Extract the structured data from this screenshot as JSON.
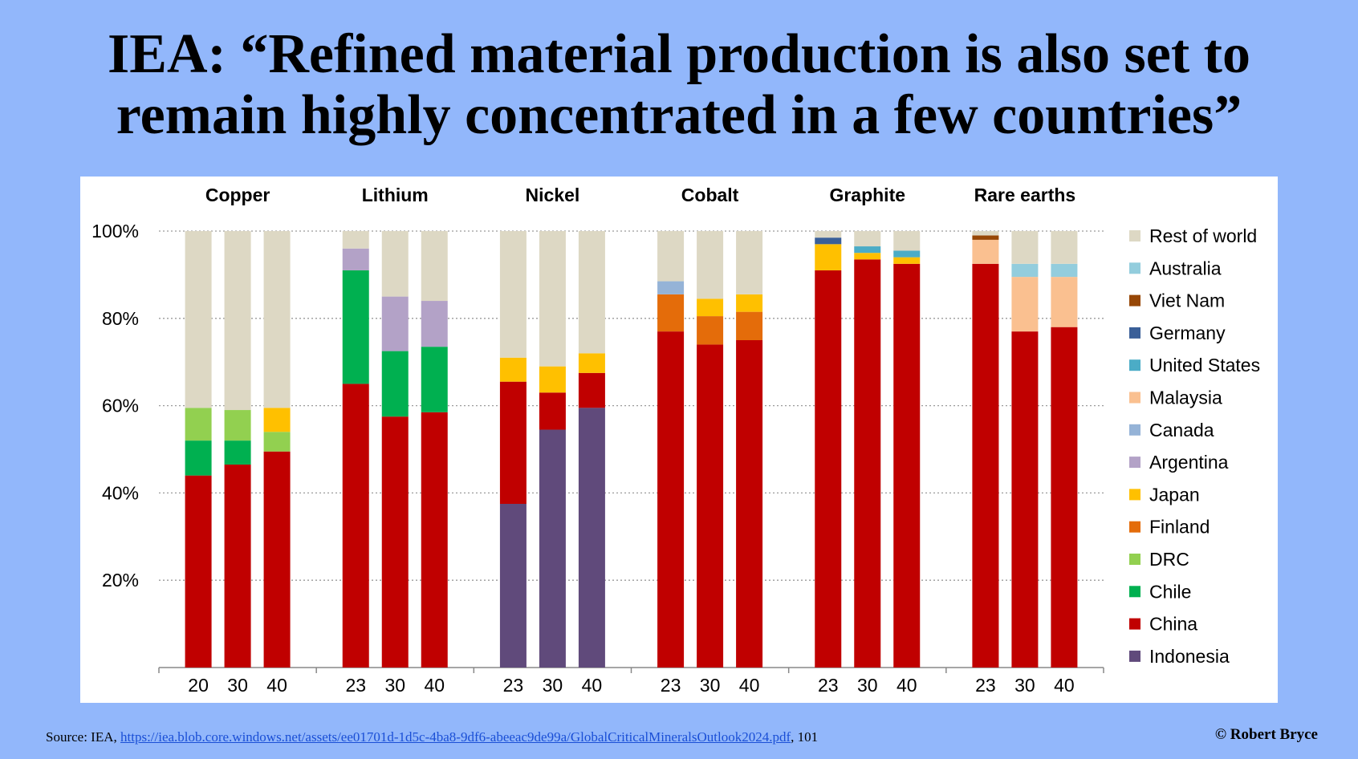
{
  "slide": {
    "title_line1": "IEA: “Refined material production is also set to",
    "title_line2": "remain highly concentrated in a few countries”",
    "source_prefix": "Source: IEA, ",
    "source_link": "https://iea.blob.core.windows.net/assets/ee01701d-1d5c-4ba8-9df6-abeeac9de99a/GlobalCriticalMineralsOutlook2024.pdf",
    "source_suffix": ", 101",
    "copyright": "© Robert Bryce"
  },
  "chart_data": {
    "type": "bar",
    "stacked": true,
    "y_ticks": [
      "20%",
      "40%",
      "60%",
      "80%",
      "100%"
    ],
    "ylim": [
      0,
      100
    ],
    "legend_position": "right",
    "legend": [
      {
        "name": "Rest of world",
        "color": "#ddd8c4"
      },
      {
        "name": "Australia",
        "color": "#93cddd"
      },
      {
        "name": "Viet Nam",
        "color": "#974706"
      },
      {
        "name": "Germany",
        "color": "#3a5f98"
      },
      {
        "name": "United States",
        "color": "#4bacc6"
      },
      {
        "name": "Malaysia",
        "color": "#fac090"
      },
      {
        "name": "Canada",
        "color": "#95b3d7"
      },
      {
        "name": "Argentina",
        "color": "#b3a2c7"
      },
      {
        "name": "Japan",
        "color": "#ffc000"
      },
      {
        "name": "Finland",
        "color": "#e46c0a"
      },
      {
        "name": "DRC",
        "color": "#92d050"
      },
      {
        "name": "Chile",
        "color": "#00b050"
      },
      {
        "name": "China",
        "color": "#c00000"
      },
      {
        "name": "Indonesia",
        "color": "#604a7b"
      }
    ],
    "groups": [
      {
        "title": "Copper",
        "bars": [
          {
            "label": "20",
            "segments": [
              {
                "country": "China",
                "value": 44
              },
              {
                "country": "Chile",
                "value": 8
              },
              {
                "country": "DRC",
                "value": 7.5
              },
              {
                "country": "Rest of world",
                "value": 40.5
              }
            ]
          },
          {
            "label": "30",
            "segments": [
              {
                "country": "China",
                "value": 46.5
              },
              {
                "country": "Chile",
                "value": 5.5
              },
              {
                "country": "DRC",
                "value": 7
              },
              {
                "country": "Rest of world",
                "value": 41
              }
            ]
          },
          {
            "label": "40",
            "segments": [
              {
                "country": "China",
                "value": 49.5
              },
              {
                "country": "DRC",
                "value": 4.5
              },
              {
                "country": "Japan",
                "value": 5.5
              },
              {
                "country": "Rest of world",
                "value": 40.5
              }
            ]
          }
        ]
      },
      {
        "title": "Lithium",
        "bars": [
          {
            "label": "23",
            "segments": [
              {
                "country": "China",
                "value": 65
              },
              {
                "country": "Chile",
                "value": 26
              },
              {
                "country": "Argentina",
                "value": 5
              },
              {
                "country": "Rest of world",
                "value": 4
              }
            ]
          },
          {
            "label": "30",
            "segments": [
              {
                "country": "China",
                "value": 57.5
              },
              {
                "country": "Chile",
                "value": 15
              },
              {
                "country": "Argentina",
                "value": 12.5
              },
              {
                "country": "Rest of world",
                "value": 15
              }
            ]
          },
          {
            "label": "40",
            "segments": [
              {
                "country": "China",
                "value": 58.5
              },
              {
                "country": "Chile",
                "value": 15
              },
              {
                "country": "Argentina",
                "value": 10.5
              },
              {
                "country": "Rest of world",
                "value": 16
              }
            ]
          }
        ]
      },
      {
        "title": "Nickel",
        "bars": [
          {
            "label": "23",
            "segments": [
              {
                "country": "Indonesia",
                "value": 37.5
              },
              {
                "country": "China",
                "value": 28
              },
              {
                "country": "Japan",
                "value": 5.5
              },
              {
                "country": "Rest of world",
                "value": 29
              }
            ]
          },
          {
            "label": "30",
            "segments": [
              {
                "country": "Indonesia",
                "value": 54.5
              },
              {
                "country": "China",
                "value": 8.5
              },
              {
                "country": "Japan",
                "value": 6
              },
              {
                "country": "Rest of world",
                "value": 31
              }
            ]
          },
          {
            "label": "40",
            "segments": [
              {
                "country": "Indonesia",
                "value": 59.5
              },
              {
                "country": "China",
                "value": 8
              },
              {
                "country": "Japan",
                "value": 4.5
              },
              {
                "country": "Rest of world",
                "value": 28
              }
            ]
          }
        ]
      },
      {
        "title": "Cobalt",
        "bars": [
          {
            "label": "23",
            "segments": [
              {
                "country": "China",
                "value": 77
              },
              {
                "country": "Finland",
                "value": 8.5
              },
              {
                "country": "Canada",
                "value": 3
              },
              {
                "country": "Rest of world",
                "value": 11.5
              }
            ]
          },
          {
            "label": "30",
            "segments": [
              {
                "country": "China",
                "value": 74
              },
              {
                "country": "Finland",
                "value": 6.5
              },
              {
                "country": "Japan",
                "value": 4
              },
              {
                "country": "Rest of world",
                "value": 15.5
              }
            ]
          },
          {
            "label": "40",
            "segments": [
              {
                "country": "China",
                "value": 75
              },
              {
                "country": "Finland",
                "value": 6.5
              },
              {
                "country": "Japan",
                "value": 4
              },
              {
                "country": "Rest of world",
                "value": 14.5
              }
            ]
          }
        ]
      },
      {
        "title": "Graphite",
        "bars": [
          {
            "label": "23",
            "segments": [
              {
                "country": "China",
                "value": 91
              },
              {
                "country": "Japan",
                "value": 6
              },
              {
                "country": "Germany",
                "value": 1.5
              },
              {
                "country": "Rest of world",
                "value": 1.5
              }
            ]
          },
          {
            "label": "30",
            "segments": [
              {
                "country": "China",
                "value": 93.5
              },
              {
                "country": "Japan",
                "value": 1.5
              },
              {
                "country": "United States",
                "value": 1.5
              },
              {
                "country": "Rest of world",
                "value": 3.5
              }
            ]
          },
          {
            "label": "40",
            "segments": [
              {
                "country": "China",
                "value": 92.5
              },
              {
                "country": "Japan",
                "value": 1.5
              },
              {
                "country": "United States",
                "value": 1.5
              },
              {
                "country": "Rest of world",
                "value": 4.5
              }
            ]
          }
        ]
      },
      {
        "title": "Rare earths",
        "bars": [
          {
            "label": "23",
            "segments": [
              {
                "country": "China",
                "value": 92.5
              },
              {
                "country": "Malaysia",
                "value": 5.5
              },
              {
                "country": "Viet Nam",
                "value": 1
              },
              {
                "country": "Rest of world",
                "value": 1
              }
            ]
          },
          {
            "label": "30",
            "segments": [
              {
                "country": "China",
                "value": 77
              },
              {
                "country": "Malaysia",
                "value": 12.5
              },
              {
                "country": "Australia",
                "value": 3
              },
              {
                "country": "Rest of world",
                "value": 7.5
              }
            ]
          },
          {
            "label": "40",
            "segments": [
              {
                "country": "China",
                "value": 78
              },
              {
                "country": "Malaysia",
                "value": 11.5
              },
              {
                "country": "Australia",
                "value": 3
              },
              {
                "country": "Rest of world",
                "value": 7.5
              }
            ]
          }
        ]
      }
    ]
  }
}
